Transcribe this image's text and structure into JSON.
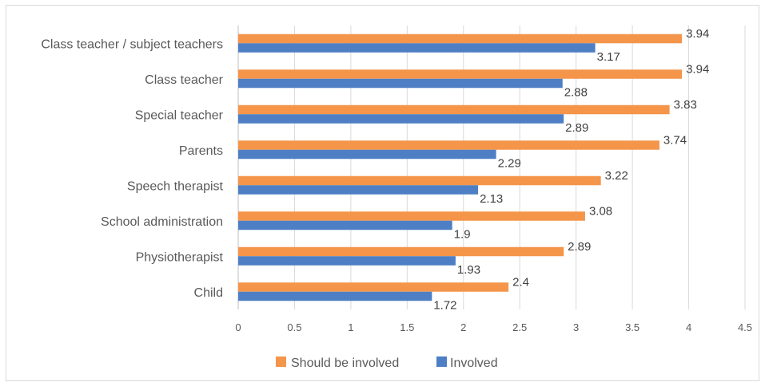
{
  "chart_data": {
    "type": "bar",
    "orientation": "horizontal",
    "categories": [
      "Class teacher / subject teachers",
      "Class teacher",
      "Special teacher",
      "Parents",
      "Speech therapist",
      "School administration",
      "Physiotherapist",
      "Child"
    ],
    "series": [
      {
        "name": "Should be involved",
        "color": "#f4954a",
        "values": [
          3.94,
          3.94,
          3.83,
          3.74,
          3.22,
          3.08,
          2.89,
          2.4
        ]
      },
      {
        "name": "Involved",
        "color": "#4e7fc4",
        "values": [
          3.17,
          2.88,
          2.89,
          2.29,
          2.13,
          1.9,
          1.93,
          1.72
        ]
      }
    ],
    "xlim": [
      0,
      4.5
    ],
    "xticks": [
      "0",
      "0.5",
      "1",
      "1.5",
      "2",
      "2.5",
      "3",
      "3.5",
      "4",
      "4.5"
    ],
    "grid": true,
    "legend_position": "bottom"
  }
}
